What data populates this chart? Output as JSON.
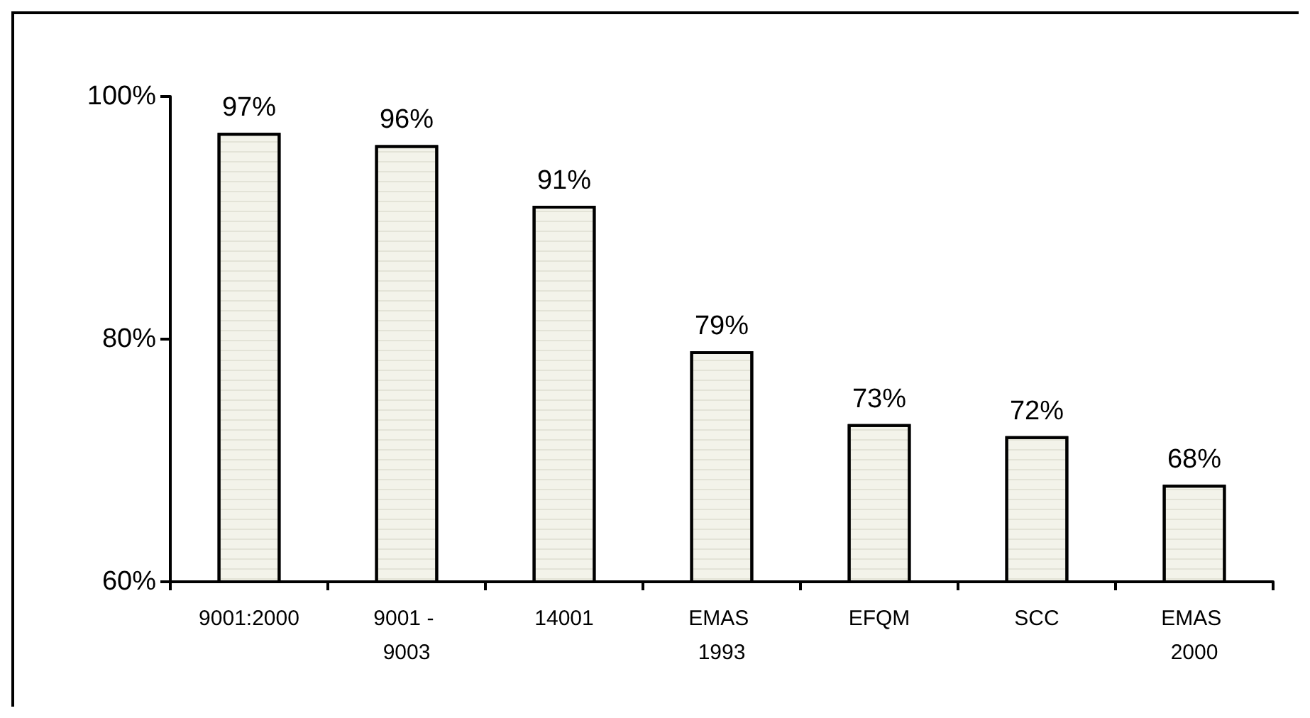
{
  "chart_data": {
    "type": "bar",
    "categories": [
      "9001:2000",
      "9001 - 9003",
      "14001",
      "EMAS 1993",
      "EFQM",
      "SCC",
      "EMAS 2000"
    ],
    "values": [
      97,
      96,
      91,
      79,
      73,
      72,
      68
    ],
    "value_labels": [
      "97%",
      "96%",
      "91%",
      "79%",
      "73%",
      "72%",
      "68%"
    ],
    "color": "#f3f3ea",
    "ylim": [
      60,
      100
    ],
    "yticks": [
      {
        "value": 60,
        "label": "60%"
      },
      {
        "value": 80,
        "label": "80%"
      },
      {
        "value": 100,
        "label": "100%"
      }
    ],
    "grid": false
  }
}
